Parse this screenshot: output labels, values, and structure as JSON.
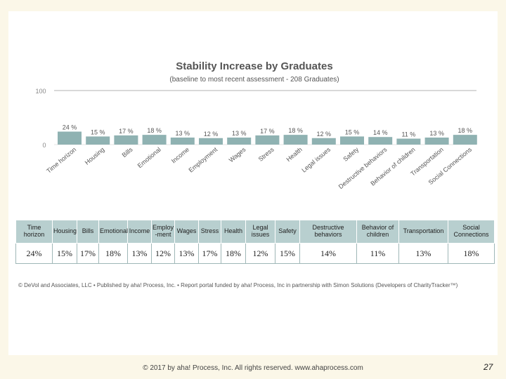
{
  "chart_data": {
    "type": "bar",
    "title": "Stability Increase by Graduates",
    "subtitle": "(baseline to most recent assessment - 208 Graduates)",
    "categories": [
      "Time horizon",
      "Housing",
      "Bills",
      "Emotional",
      "Income",
      "Employment",
      "Wages",
      "Stress",
      "Health",
      "Legal issues",
      "Safety",
      "Destructive behaviors",
      "Behavior of children",
      "Transportation",
      "Social Connections"
    ],
    "values": [
      24,
      15,
      17,
      18,
      13,
      12,
      13,
      17,
      18,
      12,
      15,
      14,
      11,
      13,
      18
    ],
    "value_labels": [
      "24 %",
      "15 %",
      "17 %",
      "18 %",
      "13 %",
      "12 %",
      "13 %",
      "17 %",
      "18 %",
      "12 %",
      "15 %",
      "14 %",
      "11 %",
      "13 %",
      "18 %"
    ],
    "ylim": [
      0,
      100
    ],
    "ytick_labels": [
      "100",
      "0"
    ],
    "bar_color": "#8fb2b2"
  },
  "table": {
    "headers": [
      "Time horizon",
      "Housing",
      "Bills",
      "Emotional",
      "Income",
      "Employ -ment",
      "Wages",
      "Stress",
      "Health",
      "Legal issues",
      "Safety",
      "Destructive behaviors",
      "Behavior of children",
      "Transportation",
      "Social Connections"
    ],
    "values": [
      "24%",
      "15%",
      "17%",
      "18%",
      "13%",
      "12%",
      "13%",
      "17%",
      "18%",
      "12%",
      "15%",
      "14%",
      "11%",
      "13%",
      "18%"
    ]
  },
  "credit": "© DeVol and Associates, LLC • Published by aha! Process, Inc. • Report portal funded by aha! Process, Inc in partnership with Simon Solutions (Developers of CharityTracker™)",
  "footer": "© 2017 by aha! Process, Inc. All rights reserved. www.ahaprocess.com",
  "page_number": "27"
}
